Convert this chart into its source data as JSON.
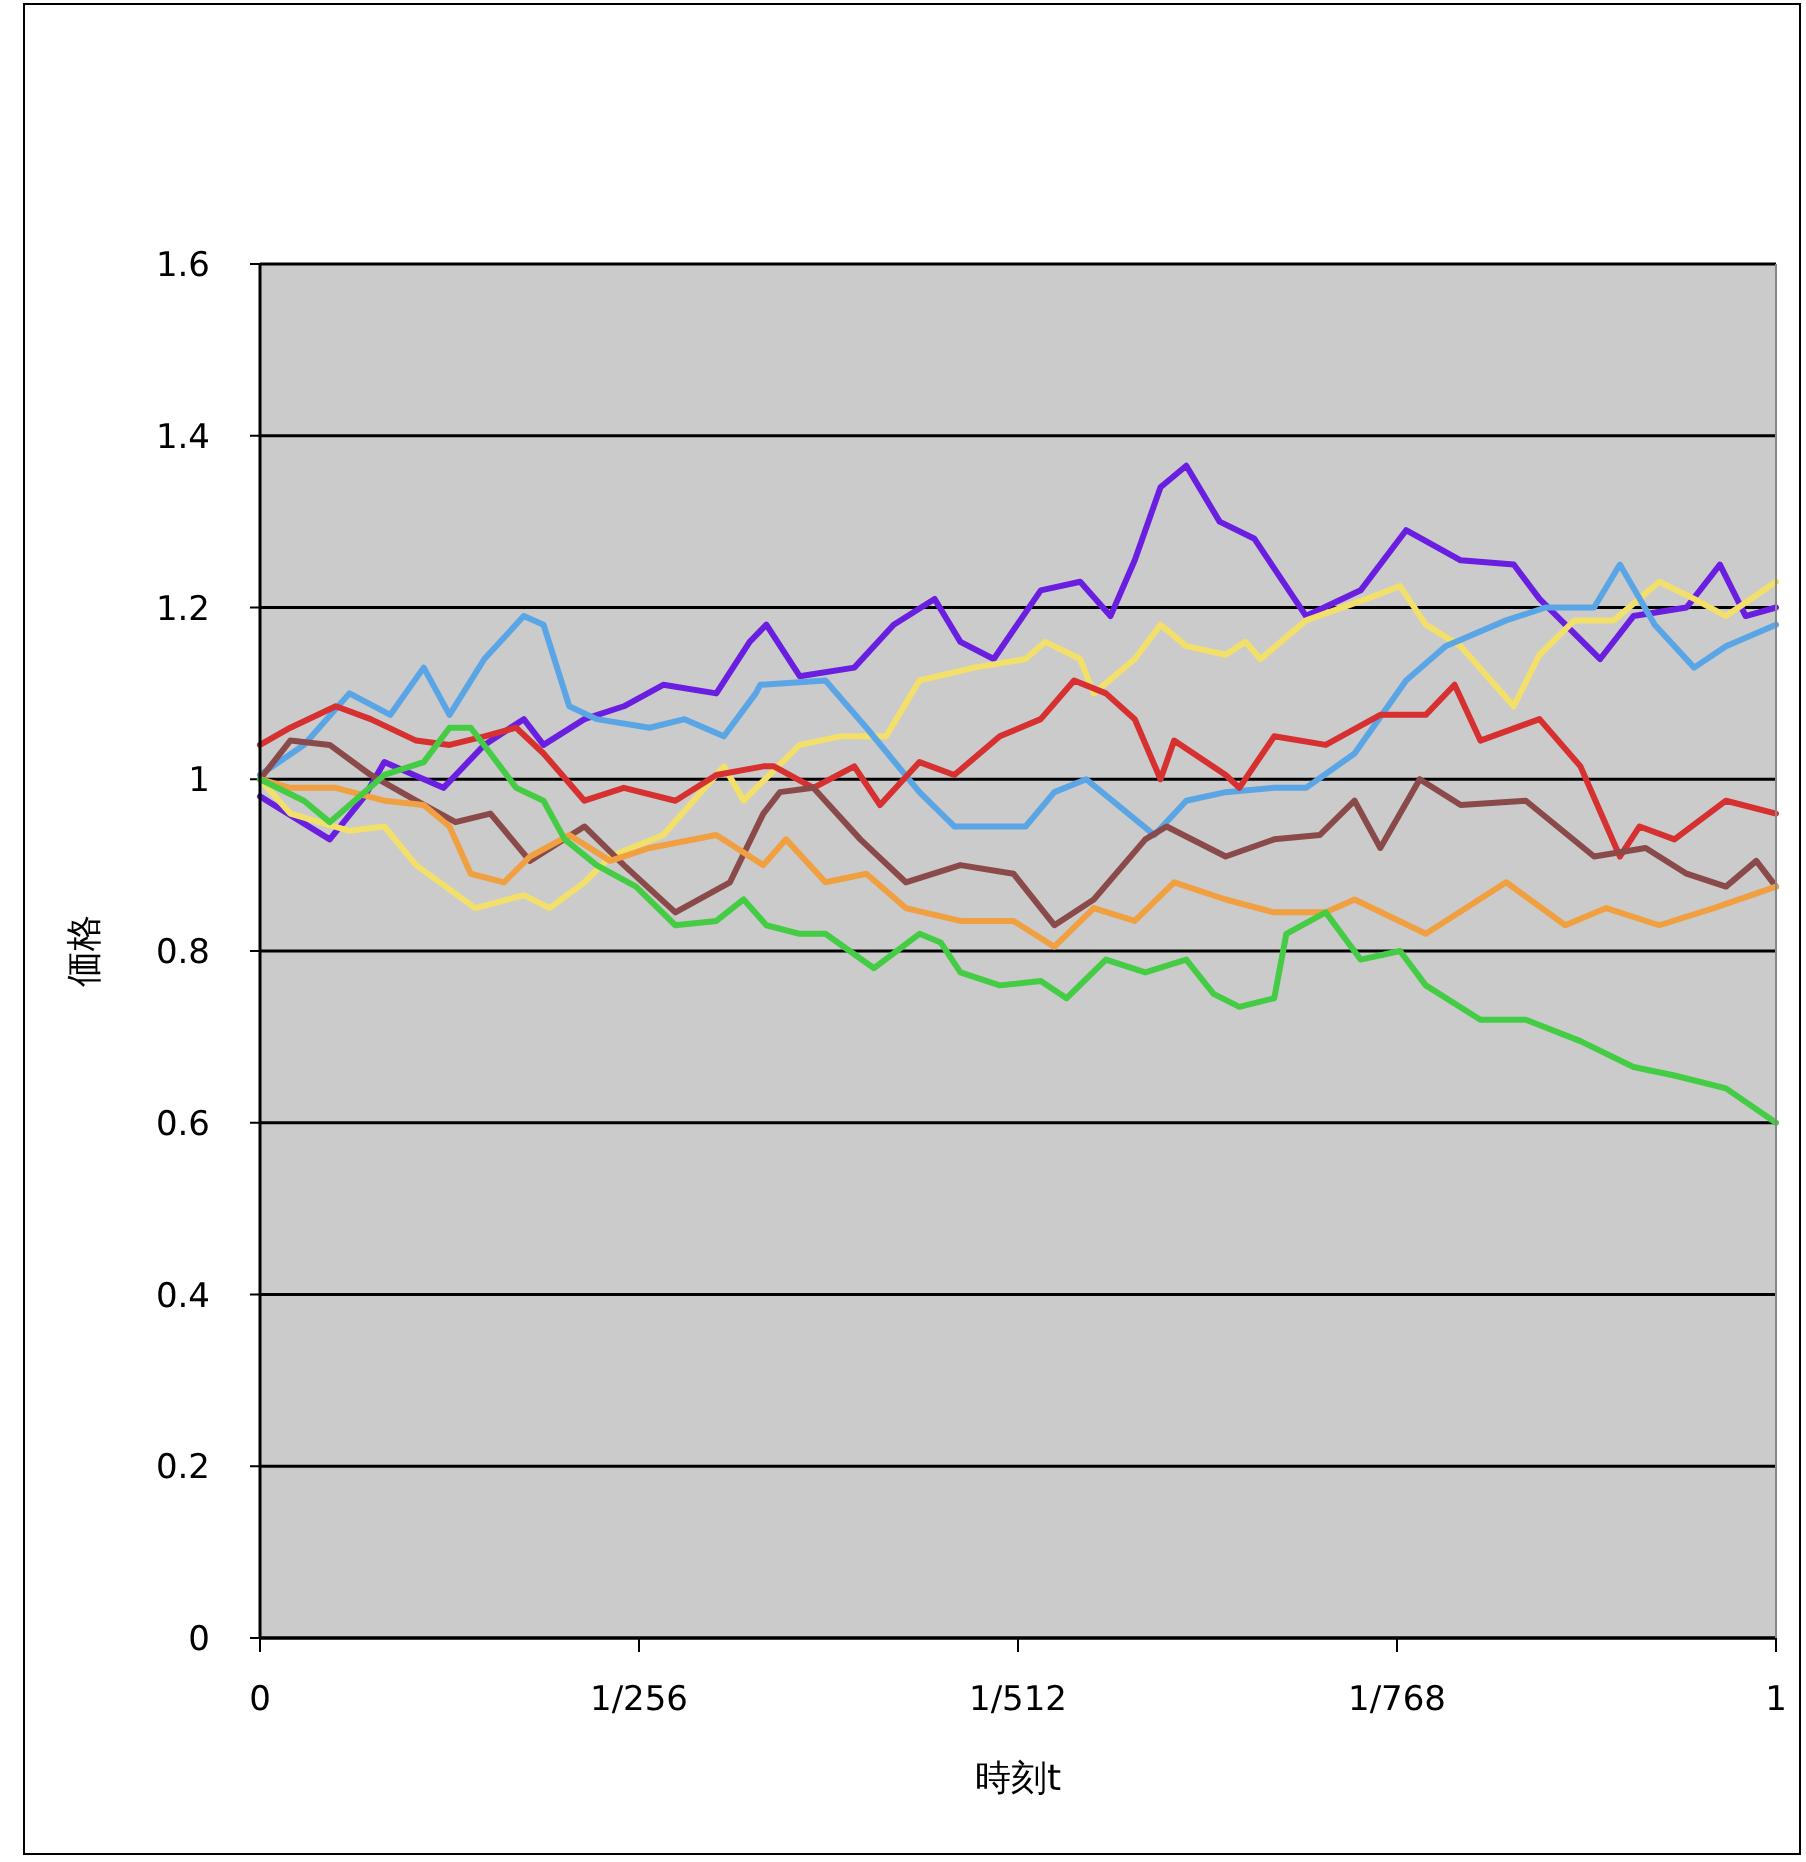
{
  "chart_data": {
    "type": "line",
    "xlabel": "時刻t",
    "ylabel": "価格",
    "grid": "y",
    "xlim": [
      0,
      1
    ],
    "ylim": [
      0,
      1.6
    ],
    "xticks": [
      0,
      {
        "value": 0.25,
        "label": "1/256"
      },
      {
        "value": 0.5,
        "label": "1/512"
      },
      {
        "value": 0.75,
        "label": "1/768"
      },
      1
    ],
    "yticks": [
      0,
      0.2,
      0.4,
      0.6,
      0.8,
      1,
      1.2,
      1.4,
      1.6
    ],
    "series": [
      {
        "color": "#6a1fe0",
        "x": [
          0,
          0.046,
          0.069,
          0.082,
          0.121,
          0.148,
          0.174,
          0.187,
          0.214,
          0.24,
          0.266,
          0.301,
          0.323,
          0.334,
          0.356,
          0.392,
          0.418,
          0.445,
          0.462,
          0.484,
          0.515,
          0.541,
          0.561,
          0.577,
          0.594,
          0.611,
          0.633,
          0.656,
          0.69,
          0.726,
          0.756,
          0.792,
          0.827,
          0.844,
          0.884,
          0.906,
          0.941,
          0.963,
          0.98,
          1
        ],
        "values": [
          0.98,
          0.93,
          0.98,
          1.02,
          0.99,
          1.04,
          1.07,
          1.04,
          1.07,
          1.085,
          1.11,
          1.1,
          1.16,
          1.18,
          1.12,
          1.13,
          1.18,
          1.21,
          1.16,
          1.14,
          1.22,
          1.23,
          1.19,
          1.255,
          1.34,
          1.365,
          1.3,
          1.28,
          1.19,
          1.22,
          1.29,
          1.255,
          1.25,
          1.21,
          1.14,
          1.19,
          1.2,
          1.25,
          1.19,
          1.2
        ]
      },
      {
        "color": "#f2e06a",
        "x": [
          0,
          0.02,
          0.059,
          0.082,
          0.103,
          0.142,
          0.174,
          0.191,
          0.214,
          0.231,
          0.266,
          0.306,
          0.319,
          0.336,
          0.356,
          0.383,
          0.413,
          0.435,
          0.471,
          0.505,
          0.518,
          0.541,
          0.55,
          0.577,
          0.594,
          0.611,
          0.637,
          0.65,
          0.66,
          0.69,
          0.73,
          0.752,
          0.769,
          0.792,
          0.827,
          0.844,
          0.867,
          0.893,
          0.923,
          0.946,
          0.967,
          1
        ],
        "values": [
          1.0,
          0.96,
          0.94,
          0.945,
          0.9,
          0.85,
          0.865,
          0.85,
          0.88,
          0.91,
          0.935,
          1.015,
          0.975,
          1.005,
          1.04,
          1.05,
          1.05,
          1.115,
          1.13,
          1.14,
          1.16,
          1.14,
          1.1,
          1.14,
          1.18,
          1.155,
          1.145,
          1.16,
          1.14,
          1.185,
          1.21,
          1.225,
          1.18,
          1.155,
          1.085,
          1.145,
          1.185,
          1.185,
          1.23,
          1.21,
          1.19,
          1.23
        ]
      },
      {
        "color": "#5aa5e6",
        "x": [
          0,
          0.029,
          0.059,
          0.086,
          0.108,
          0.125,
          0.148,
          0.174,
          0.187,
          0.204,
          0.222,
          0.257,
          0.28,
          0.306,
          0.327,
          0.33,
          0.373,
          0.4,
          0.435,
          0.458,
          0.505,
          0.524,
          0.545,
          0.59,
          0.611,
          0.637,
          0.669,
          0.69,
          0.722,
          0.756,
          0.782,
          0.822,
          0.848,
          0.88,
          0.897,
          0.92,
          0.946,
          0.967,
          1
        ],
        "values": [
          1.005,
          1.04,
          1.1,
          1.075,
          1.13,
          1.075,
          1.14,
          1.19,
          1.18,
          1.085,
          1.07,
          1.06,
          1.07,
          1.05,
          1.1,
          1.11,
          1.115,
          1.06,
          0.985,
          0.945,
          0.945,
          0.985,
          1.0,
          0.935,
          0.975,
          0.985,
          0.99,
          0.99,
          1.03,
          1.115,
          1.155,
          1.185,
          1.2,
          1.2,
          1.25,
          1.18,
          1.13,
          1.155,
          1.18
        ]
      },
      {
        "color": "#d63030",
        "x": [
          0,
          0.02,
          0.05,
          0.073,
          0.103,
          0.125,
          0.148,
          0.169,
          0.187,
          0.214,
          0.24,
          0.274,
          0.301,
          0.332,
          0.339,
          0.365,
          0.392,
          0.409,
          0.435,
          0.458,
          0.488,
          0.515,
          0.537,
          0.558,
          0.577,
          0.594,
          0.603,
          0.637,
          0.646,
          0.669,
          0.703,
          0.739,
          0.769,
          0.788,
          0.805,
          0.844,
          0.871,
          0.897,
          0.91,
          0.933,
          0.967,
          1
        ],
        "values": [
          1.04,
          1.06,
          1.085,
          1.07,
          1.045,
          1.04,
          1.05,
          1.06,
          1.03,
          0.975,
          0.99,
          0.975,
          1.005,
          1.015,
          1.015,
          0.99,
          1.015,
          0.97,
          1.02,
          1.005,
          1.05,
          1.07,
          1.115,
          1.1,
          1.07,
          1.0,
          1.045,
          1.005,
          0.99,
          1.05,
          1.04,
          1.075,
          1.075,
          1.11,
          1.045,
          1.07,
          1.015,
          0.91,
          0.945,
          0.93,
          0.975,
          0.96
        ]
      },
      {
        "color": "#8b4a4a",
        "x": [
          0,
          0.02,
          0.046,
          0.073,
          0.103,
          0.129,
          0.152,
          0.178,
          0.214,
          0.24,
          0.274,
          0.31,
          0.332,
          0.343,
          0.365,
          0.396,
          0.426,
          0.462,
          0.497,
          0.524,
          0.55,
          0.584,
          0.598,
          0.637,
          0.669,
          0.699,
          0.722,
          0.739,
          0.765,
          0.792,
          0.835,
          0.88,
          0.914,
          0.941,
          0.967,
          0.987,
          1
        ],
        "values": [
          1.0,
          1.045,
          1.04,
          1.005,
          0.975,
          0.95,
          0.96,
          0.905,
          0.945,
          0.9,
          0.845,
          0.88,
          0.96,
          0.985,
          0.99,
          0.93,
          0.88,
          0.9,
          0.89,
          0.83,
          0.86,
          0.93,
          0.945,
          0.91,
          0.93,
          0.935,
          0.975,
          0.92,
          1.0,
          0.97,
          0.975,
          0.91,
          0.92,
          0.89,
          0.875,
          0.905,
          0.875
        ]
      },
      {
        "color": "#f0a040",
        "x": [
          0,
          0.02,
          0.05,
          0.082,
          0.108,
          0.125,
          0.139,
          0.161,
          0.178,
          0.204,
          0.231,
          0.257,
          0.301,
          0.332,
          0.347,
          0.373,
          0.4,
          0.426,
          0.462,
          0.497,
          0.524,
          0.55,
          0.577,
          0.603,
          0.637,
          0.669,
          0.703,
          0.722,
          0.769,
          0.822,
          0.861,
          0.888,
          0.923,
          0.959,
          1
        ],
        "values": [
          1.0,
          0.99,
          0.99,
          0.975,
          0.97,
          0.945,
          0.89,
          0.88,
          0.91,
          0.935,
          0.905,
          0.92,
          0.935,
          0.9,
          0.93,
          0.88,
          0.89,
          0.85,
          0.835,
          0.835,
          0.805,
          0.85,
          0.835,
          0.88,
          0.86,
          0.845,
          0.845,
          0.86,
          0.82,
          0.88,
          0.83,
          0.85,
          0.83,
          0.85,
          0.875
        ]
      },
      {
        "color": "#44cc44",
        "x": [
          0,
          0.029,
          0.046,
          0.082,
          0.108,
          0.125,
          0.139,
          0.152,
          0.169,
          0.187,
          0.201,
          0.222,
          0.248,
          0.274,
          0.301,
          0.319,
          0.334,
          0.356,
          0.373,
          0.405,
          0.435,
          0.449,
          0.462,
          0.488,
          0.515,
          0.532,
          0.558,
          0.584,
          0.611,
          0.629,
          0.646,
          0.669,
          0.677,
          0.703,
          0.726,
          0.752,
          0.769,
          0.805,
          0.835,
          0.871,
          0.906,
          0.933,
          0.967,
          1
        ],
        "values": [
          1.0,
          0.975,
          0.95,
          1.005,
          1.02,
          1.06,
          1.06,
          1.03,
          0.99,
          0.975,
          0.93,
          0.9,
          0.875,
          0.83,
          0.835,
          0.86,
          0.83,
          0.82,
          0.82,
          0.78,
          0.82,
          0.81,
          0.775,
          0.76,
          0.765,
          0.745,
          0.79,
          0.775,
          0.79,
          0.75,
          0.735,
          0.745,
          0.82,
          0.845,
          0.79,
          0.8,
          0.76,
          0.72,
          0.72,
          0.695,
          0.665,
          0.655,
          0.64,
          0.6
        ]
      }
    ]
  }
}
